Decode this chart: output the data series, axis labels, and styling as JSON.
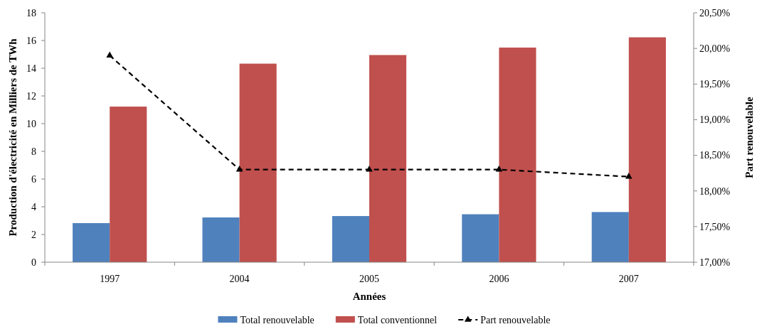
{
  "chart_data": {
    "type": "bar",
    "categories": [
      "1997",
      "2004",
      "2005",
      "2006",
      "2007"
    ],
    "series": [
      {
        "name": "Total renouvelable",
        "color": "#4f81bd",
        "values": [
          2.82,
          3.23,
          3.33,
          3.46,
          3.62
        ]
      },
      {
        "name": "Total conventionnel",
        "color": "#c0504d",
        "values": [
          11.23,
          14.33,
          14.95,
          15.49,
          16.23
        ]
      },
      {
        "name": "Part renouvelable",
        "type": "line",
        "axis": "y2",
        "color": "#000000",
        "values": [
          19.9,
          18.3,
          18.3,
          18.3,
          18.2
        ],
        "marker": "triangle",
        "line_style": "dashed"
      }
    ],
    "xlabel": "Années",
    "ylabel": "Production d'électricité en Milliers de TWh",
    "y2label": "Part renouvelable",
    "ylim": [
      0,
      18
    ],
    "yticks": [
      0,
      2,
      4,
      6,
      8,
      10,
      12,
      14,
      16,
      18
    ],
    "y2lim": [
      17,
      20.5
    ],
    "y2ticks": [
      {
        "value": 17,
        "label": "17,00%"
      },
      {
        "value": 17.5,
        "label": "17,50%"
      },
      {
        "value": 18,
        "label": "18,00%"
      },
      {
        "value": 18.5,
        "label": "18,50%"
      },
      {
        "value": 19,
        "label": "19,00%"
      },
      {
        "value": 19.5,
        "label": "19,50%"
      },
      {
        "value": 20,
        "label": "20,00%"
      },
      {
        "value": 20.5,
        "label": "20,50%"
      }
    ],
    "legend": "bottom",
    "grid": false
  }
}
